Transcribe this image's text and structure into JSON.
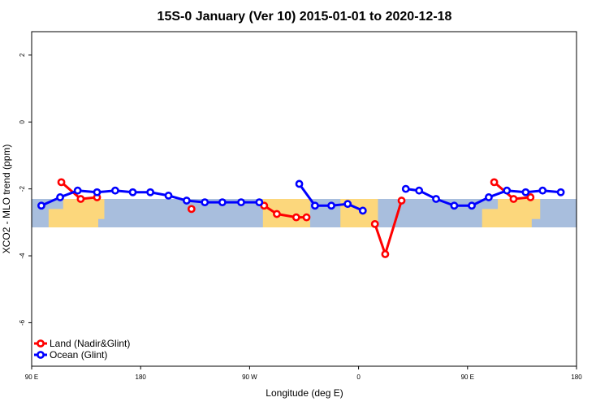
{
  "chart_data": {
    "type": "line",
    "title": "15S-0 January (Ver 10)   2015-01-01 to 2020-12-18",
    "xlabel": "Longitude (deg E)",
    "ylabel": "XCO2 - MLO trend (ppm)",
    "xlim": [
      90,
      540
    ],
    "ylim": [
      -7.3,
      2.7
    ],
    "x_ticks": [
      {
        "value": 90,
        "label": "90 E"
      },
      {
        "value": 180,
        "label": "180"
      },
      {
        "value": 270,
        "label": "90 W"
      },
      {
        "value": 360,
        "label": "0"
      },
      {
        "value": 450,
        "label": "90 E"
      },
      {
        "value": 540,
        "label": "180"
      }
    ],
    "y_ticks": [
      {
        "value": 2,
        "label": "2"
      },
      {
        "value": 0,
        "label": "0"
      },
      {
        "value": -2,
        "label": "-2"
      },
      {
        "value": -4,
        "label": "-4"
      },
      {
        "value": -6,
        "label": "-6"
      }
    ],
    "map_band": {
      "lat_range": [
        -20,
        -10
      ],
      "y_range": [
        -3.15,
        -2.3
      ],
      "ocean_color": "#a8bedd",
      "land_color": "#fcd77c",
      "land_segments": [
        {
          "x": [
            104,
            145
          ],
          "y": [
            -2.6,
            -3.15
          ]
        },
        {
          "x": [
            116,
            150
          ],
          "y": [
            -2.3,
            -2.9
          ]
        },
        {
          "x": [
            281,
            320
          ],
          "y": [
            -2.3,
            -3.15
          ]
        },
        {
          "x": [
            345,
            376
          ],
          "y": [
            -2.3,
            -3.15
          ]
        },
        {
          "x": [
            462,
            503
          ],
          "y": [
            -2.6,
            -3.15
          ]
        },
        {
          "x": [
            475,
            510
          ],
          "y": [
            -2.3,
            -2.9
          ]
        }
      ]
    },
    "series": [
      {
        "name": "Land (Nadir&Glint)",
        "color": "#ff0000",
        "segments": [
          [
            [
              114.5,
              -1.8
            ],
            [
              130.5,
              -2.3
            ],
            [
              144,
              -2.25
            ]
          ],
          [
            [
              222,
              -2.6
            ]
          ],
          [
            [
              282,
              -2.5
            ],
            [
              292.5,
              -2.75
            ],
            [
              308.5,
              -2.85
            ],
            [
              317,
              -2.85
            ]
          ],
          [
            [
              373.5,
              -3.05
            ],
            [
              382,
              -3.95
            ],
            [
              395.5,
              -2.35
            ]
          ],
          [
            [
              472,
              -1.8
            ],
            [
              488,
              -2.3
            ],
            [
              502,
              -2.25
            ]
          ]
        ]
      },
      {
        "name": "Ocean (Glint)",
        "color": "#0000ff",
        "segments": [
          [
            [
              98,
              -2.5
            ],
            [
              113.5,
              -2.25
            ],
            [
              128,
              -2.05
            ],
            [
              144,
              -2.1
            ],
            [
              159,
              -2.05
            ],
            [
              173.5,
              -2.1
            ],
            [
              188,
              -2.1
            ],
            [
              203,
              -2.2
            ],
            [
              218,
              -2.35
            ],
            [
              233,
              -2.4
            ],
            [
              247.5,
              -2.4
            ],
            [
              263,
              -2.4
            ],
            [
              278,
              -2.4
            ]
          ],
          [
            [
              311,
              -1.85
            ],
            [
              324,
              -2.5
            ],
            [
              337.5,
              -2.5
            ],
            [
              351,
              -2.45
            ],
            [
              363.5,
              -2.65
            ]
          ],
          [
            [
              399,
              -2.0
            ],
            [
              410,
              -2.05
            ],
            [
              424,
              -2.3
            ],
            [
              439,
              -2.5
            ],
            [
              453.5,
              -2.5
            ],
            [
              467.5,
              -2.25
            ],
            [
              482.5,
              -2.05
            ],
            [
              498,
              -2.1
            ],
            [
              512,
              -2.05
            ],
            [
              527,
              -2.1
            ]
          ]
        ]
      }
    ],
    "legend": {
      "position": "bottom-left",
      "entries": [
        {
          "label": "Land (Nadir&Glint)",
          "color": "#ff0000"
        },
        {
          "label": "Ocean (Glint)",
          "color": "#0000ff"
        }
      ]
    },
    "grid": false
  }
}
